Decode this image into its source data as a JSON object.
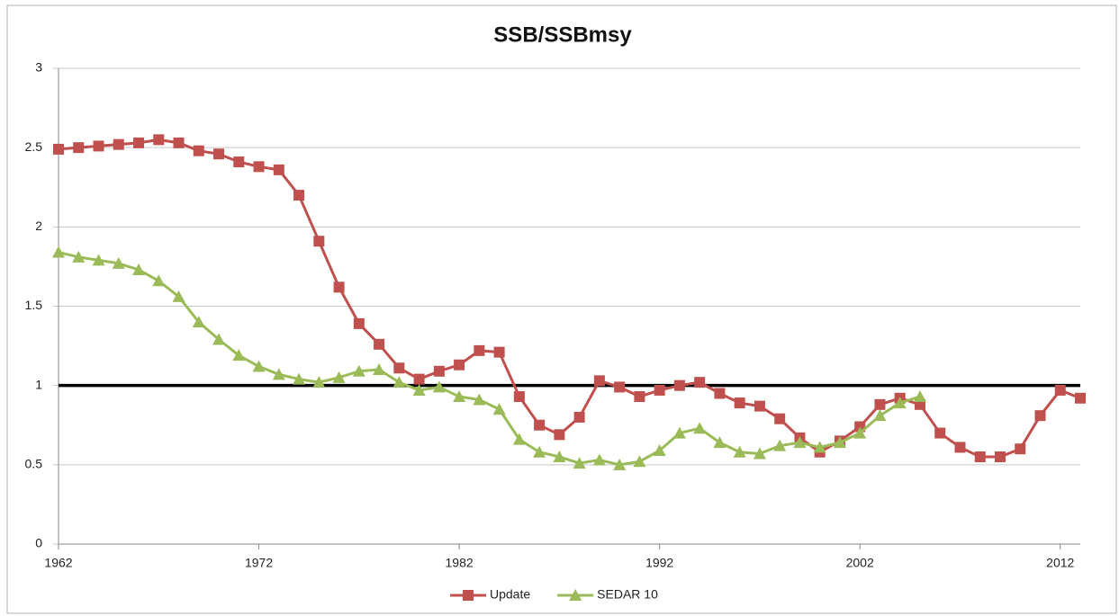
{
  "chart_data": {
    "type": "line",
    "title": "SSB/SSBmsy",
    "x": [
      1962,
      1963,
      1964,
      1965,
      1966,
      1967,
      1968,
      1969,
      1970,
      1971,
      1972,
      1973,
      1974,
      1975,
      1976,
      1977,
      1978,
      1979,
      1980,
      1981,
      1982,
      1983,
      1984,
      1985,
      1986,
      1987,
      1988,
      1989,
      1990,
      1991,
      1992,
      1993,
      1994,
      1995,
      1996,
      1997,
      1998,
      1999,
      2000,
      2001,
      2002,
      2003,
      2004,
      2005,
      2006,
      2007,
      2008,
      2009,
      2010,
      2011,
      2012,
      2013
    ],
    "series": [
      {
        "name": "Update",
        "color": "#c0504d",
        "marker": "square",
        "values": [
          2.49,
          2.5,
          2.51,
          2.52,
          2.53,
          2.55,
          2.53,
          2.48,
          2.46,
          2.41,
          2.38,
          2.36,
          2.2,
          1.91,
          1.62,
          1.39,
          1.26,
          1.11,
          1.04,
          1.09,
          1.13,
          1.22,
          1.21,
          0.93,
          0.75,
          0.69,
          0.8,
          1.03,
          0.99,
          0.93,
          0.97,
          1.0,
          1.02,
          0.95,
          0.89,
          0.87,
          0.79,
          0.67,
          0.58,
          0.65,
          0.74,
          0.88,
          0.92,
          0.88,
          0.7,
          0.61,
          0.55,
          0.55,
          0.6,
          0.81,
          0.97,
          0.92
        ]
      },
      {
        "name": "SEDAR 10",
        "color": "#9bbb59",
        "marker": "triangle",
        "values": [
          1.84,
          1.81,
          1.79,
          1.77,
          1.73,
          1.66,
          1.56,
          1.4,
          1.29,
          1.19,
          1.12,
          1.07,
          1.04,
          1.02,
          1.05,
          1.09,
          1.1,
          1.02,
          0.97,
          0.99,
          0.93,
          0.91,
          0.85,
          0.66,
          0.58,
          0.55,
          0.51,
          0.53,
          0.5,
          0.52,
          0.59,
          0.7,
          0.73,
          0.64,
          0.58,
          0.57,
          0.62,
          0.64,
          0.61,
          0.64,
          0.7,
          0.81,
          0.89,
          0.93,
          null,
          null,
          null,
          null,
          null,
          null,
          null,
          null
        ]
      }
    ],
    "xlim": [
      1962,
      2013
    ],
    "xticks": [
      1962,
      1972,
      1982,
      1992,
      2002,
      2012
    ],
    "ylim": [
      0,
      3
    ],
    "yticks": [
      0,
      0.5,
      1,
      1.5,
      2,
      2.5,
      3
    ],
    "grid": true,
    "reference_line": {
      "value": 1,
      "color": "#000000"
    },
    "legend": "bottom"
  }
}
